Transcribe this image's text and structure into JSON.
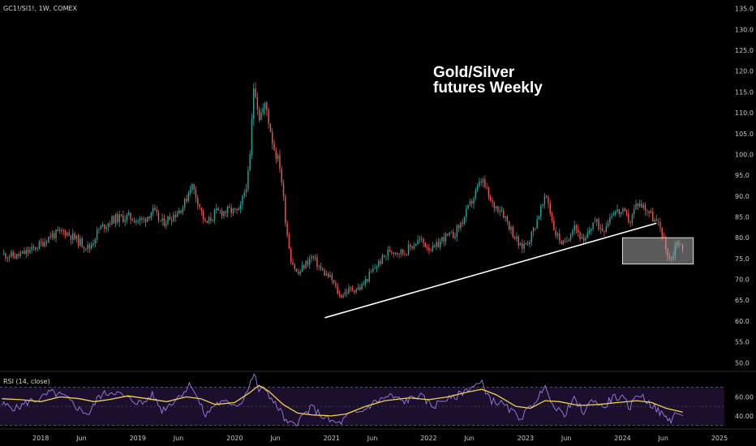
{
  "header": {
    "symbol_line": "GC1!/SI1!, 1W, COMEX"
  },
  "annotation": {
    "line1": "Gold/Silver",
    "line2": "futures Weekly"
  },
  "colors": {
    "up": "#26a69a",
    "down": "#ef5350",
    "rsi": "#9b7ee0",
    "rsi_ma": "#f0d24a",
    "trendline": "#ffffff",
    "box_fill": "#b4b4b4",
    "box_stroke": "#e0e0e0"
  },
  "chart_data": [
    {
      "type": "line",
      "title": "Gold/Silver futures Weekly",
      "series": [
        {
          "values": [
            [
              2017.6,
              76.0
            ],
            [
              2017.75,
              75.5
            ],
            [
              2017.9,
              77.0
            ],
            [
              2018.0,
              78.5
            ],
            [
              2018.1,
              80.5
            ],
            [
              2018.25,
              81.5
            ],
            [
              2018.4,
              79.0
            ],
            [
              2018.5,
              77.5
            ],
            [
              2018.6,
              82.0
            ],
            [
              2018.75,
              84.5
            ],
            [
              2018.9,
              85.0
            ],
            [
              2019.05,
              84.0
            ],
            [
              2019.15,
              86.5
            ],
            [
              2019.25,
              83.5
            ],
            [
              2019.4,
              86.0
            ],
            [
              2019.48,
              88.0
            ],
            [
              2019.55,
              93.0
            ],
            [
              2019.62,
              89.0
            ],
            [
              2019.7,
              83.0
            ],
            [
              2019.8,
              86.0
            ],
            [
              2019.95,
              86.5
            ],
            [
              2020.05,
              86.0
            ],
            [
              2020.15,
              96.0
            ],
            [
              2020.2,
              118.0
            ],
            [
              2020.25,
              109.0
            ],
            [
              2020.32,
              112.0
            ],
            [
              2020.4,
              102.0
            ],
            [
              2020.47,
              97.0
            ],
            [
              2020.53,
              83.0
            ],
            [
              2020.58,
              75.0
            ],
            [
              2020.65,
              71.0
            ],
            [
              2020.72,
              73.5
            ],
            [
              2020.8,
              75.5
            ],
            [
              2020.9,
              72.0
            ],
            [
              2021.0,
              70.0
            ],
            [
              2021.08,
              66.0
            ],
            [
              2021.18,
              67.5
            ],
            [
              2021.3,
              68.0
            ],
            [
              2021.45,
              73.0
            ],
            [
              2021.6,
              77.0
            ],
            [
              2021.75,
              76.5
            ],
            [
              2021.9,
              79.5
            ],
            [
              2022.05,
              77.0
            ],
            [
              2022.15,
              80.0
            ],
            [
              2022.25,
              80.5
            ],
            [
              2022.35,
              84.0
            ],
            [
              2022.45,
              89.0
            ],
            [
              2022.55,
              94.0
            ],
            [
              2022.65,
              88.0
            ],
            [
              2022.75,
              87.0
            ],
            [
              2022.85,
              82.0
            ],
            [
              2022.95,
              77.5
            ],
            [
              2023.05,
              80.0
            ],
            [
              2023.15,
              86.5
            ],
            [
              2023.22,
              90.0
            ],
            [
              2023.3,
              81.5
            ],
            [
              2023.4,
              78.0
            ],
            [
              2023.5,
              83.5
            ],
            [
              2023.6,
              78.5
            ],
            [
              2023.7,
              84.0
            ],
            [
              2023.8,
              82.0
            ],
            [
              2023.9,
              86.5
            ],
            [
              2024.0,
              86.0
            ],
            [
              2024.08,
              84.0
            ],
            [
              2024.15,
              88.5
            ],
            [
              2024.25,
              87.0
            ],
            [
              2024.35,
              83.5
            ],
            [
              2024.4,
              82.0
            ],
            [
              2024.45,
              77.0
            ],
            [
              2024.5,
              74.5
            ],
            [
              2024.56,
              79.5
            ],
            [
              2024.62,
              77.0
            ]
          ]
        }
      ],
      "yaxis": {
        "ticks": [
          "50.0",
          "55.0",
          "60.0",
          "65.0",
          "70.0",
          "75.0",
          "80.0",
          "85.0",
          "90.0",
          "95.0",
          "100.0",
          "105.0",
          "110.0",
          "115.0",
          "120.0",
          "125.0",
          "130.0",
          "135.0"
        ],
        "ylim": [
          48.5,
          136.3
        ]
      },
      "xaxis": {
        "ticks": [
          {
            "label": "2018",
            "x": 2018.0
          },
          {
            "label": "Jun",
            "x": 2018.42
          },
          {
            "label": "2019",
            "x": 2019.0
          },
          {
            "label": "Jun",
            "x": 2019.42
          },
          {
            "label": "2020",
            "x": 2020.0
          },
          {
            "label": "Jun",
            "x": 2020.42
          },
          {
            "label": "2021",
            "x": 2021.0
          },
          {
            "label": "Jun",
            "x": 2021.42
          },
          {
            "label": "2022",
            "x": 2022.0
          },
          {
            "label": "Jun",
            "x": 2022.42
          },
          {
            "label": "2023",
            "x": 2023.0
          },
          {
            "label": "Jun",
            "x": 2023.42
          },
          {
            "label": "2024",
            "x": 2024.0
          },
          {
            "label": "Jun",
            "x": 2024.42
          },
          {
            "label": "2025",
            "x": 2025.0
          }
        ],
        "xlim": [
          2017.58,
          2025.05
        ]
      },
      "trendline": {
        "start": [
          2020.93,
          60.8
        ],
        "end": [
          2024.35,
          83.5
        ]
      },
      "zone": {
        "x1": 2024.0,
        "x2": 2024.73,
        "y_low": 73.7,
        "y_high": 80.0
      },
      "annotation": "Gold/Silver futures Weekly"
    },
    {
      "type": "line",
      "title": "RSI (14, close)",
      "yaxis": {
        "ticks": [
          "40.00",
          "60.00"
        ],
        "ylim": [
          28,
          85
        ],
        "bands": [
          30,
          70
        ],
        "midline": 50
      },
      "series": [
        {
          "name": "RSI",
          "values": [
            [
              2017.6,
              52
            ],
            [
              2017.75,
              48
            ],
            [
              2017.9,
              56
            ],
            [
              2018.0,
              58
            ],
            [
              2018.1,
              65
            ],
            [
              2018.25,
              60
            ],
            [
              2018.4,
              47
            ],
            [
              2018.5,
              42
            ],
            [
              2018.6,
              61
            ],
            [
              2018.75,
              66
            ],
            [
              2018.9,
              58
            ],
            [
              2019.05,
              53
            ],
            [
              2019.15,
              62
            ],
            [
              2019.25,
              46
            ],
            [
              2019.4,
              58
            ],
            [
              2019.48,
              66
            ],
            [
              2019.55,
              74
            ],
            [
              2019.62,
              57
            ],
            [
              2019.7,
              40
            ],
            [
              2019.8,
              53
            ],
            [
              2019.95,
              54
            ],
            [
              2020.05,
              52
            ],
            [
              2020.15,
              70
            ],
            [
              2020.2,
              86
            ],
            [
              2020.25,
              66
            ],
            [
              2020.32,
              69
            ],
            [
              2020.4,
              54
            ],
            [
              2020.47,
              46
            ],
            [
              2020.53,
              33
            ],
            [
              2020.58,
              31
            ],
            [
              2020.65,
              34
            ],
            [
              2020.72,
              42
            ],
            [
              2020.8,
              49
            ],
            [
              2020.9,
              40
            ],
            [
              2021.0,
              34
            ],
            [
              2021.08,
              32
            ],
            [
              2021.18,
              41
            ],
            [
              2021.3,
              44
            ],
            [
              2021.45,
              55
            ],
            [
              2021.6,
              61
            ],
            [
              2021.75,
              55
            ],
            [
              2021.9,
              62
            ],
            [
              2022.05,
              50
            ],
            [
              2022.15,
              57
            ],
            [
              2022.25,
              58
            ],
            [
              2022.35,
              65
            ],
            [
              2022.45,
              71
            ],
            [
              2022.55,
              74
            ],
            [
              2022.65,
              56
            ],
            [
              2022.75,
              53
            ],
            [
              2022.85,
              45
            ],
            [
              2022.95,
              38
            ],
            [
              2023.05,
              49
            ],
            [
              2023.15,
              63
            ],
            [
              2023.22,
              70
            ],
            [
              2023.3,
              47
            ],
            [
              2023.4,
              42
            ],
            [
              2023.5,
              57
            ],
            [
              2023.6,
              44
            ],
            [
              2023.7,
              58
            ],
            [
              2023.8,
              48
            ],
            [
              2023.9,
              60
            ],
            [
              2024.0,
              58
            ],
            [
              2024.08,
              49
            ],
            [
              2024.15,
              64
            ],
            [
              2024.25,
              56
            ],
            [
              2024.35,
              47
            ],
            [
              2024.4,
              42
            ],
            [
              2024.45,
              38
            ],
            [
              2024.5,
              36
            ],
            [
              2024.56,
              44
            ],
            [
              2024.62,
              40
            ]
          ]
        },
        {
          "name": "RSI-based MA",
          "values": [
            [
              2017.6,
              58
            ],
            [
              2017.8,
              57
            ],
            [
              2018.0,
              55
            ],
            [
              2018.2,
              60
            ],
            [
              2018.4,
              58
            ],
            [
              2018.55,
              55
            ],
            [
              2018.7,
              57
            ],
            [
              2018.9,
              61
            ],
            [
              2019.1,
              58
            ],
            [
              2019.3,
              55
            ],
            [
              2019.5,
              60
            ],
            [
              2019.65,
              58
            ],
            [
              2019.8,
              52
            ],
            [
              2020.0,
              54
            ],
            [
              2020.15,
              64
            ],
            [
              2020.25,
              72
            ],
            [
              2020.35,
              66
            ],
            [
              2020.5,
              52
            ],
            [
              2020.65,
              43
            ],
            [
              2020.8,
              41
            ],
            [
              2021.0,
              40
            ],
            [
              2021.15,
              42
            ],
            [
              2021.35,
              50
            ],
            [
              2021.55,
              56
            ],
            [
              2021.8,
              59
            ],
            [
              2022.0,
              57
            ],
            [
              2022.2,
              60
            ],
            [
              2022.4,
              65
            ],
            [
              2022.55,
              68
            ],
            [
              2022.7,
              62
            ],
            [
              2022.9,
              50
            ],
            [
              2023.05,
              48
            ],
            [
              2023.2,
              56
            ],
            [
              2023.35,
              55
            ],
            [
              2023.55,
              51
            ],
            [
              2023.75,
              52
            ],
            [
              2023.95,
              54
            ],
            [
              2024.15,
              56
            ],
            [
              2024.3,
              54
            ],
            [
              2024.45,
              48
            ],
            [
              2024.62,
              44
            ]
          ]
        }
      ]
    }
  ]
}
